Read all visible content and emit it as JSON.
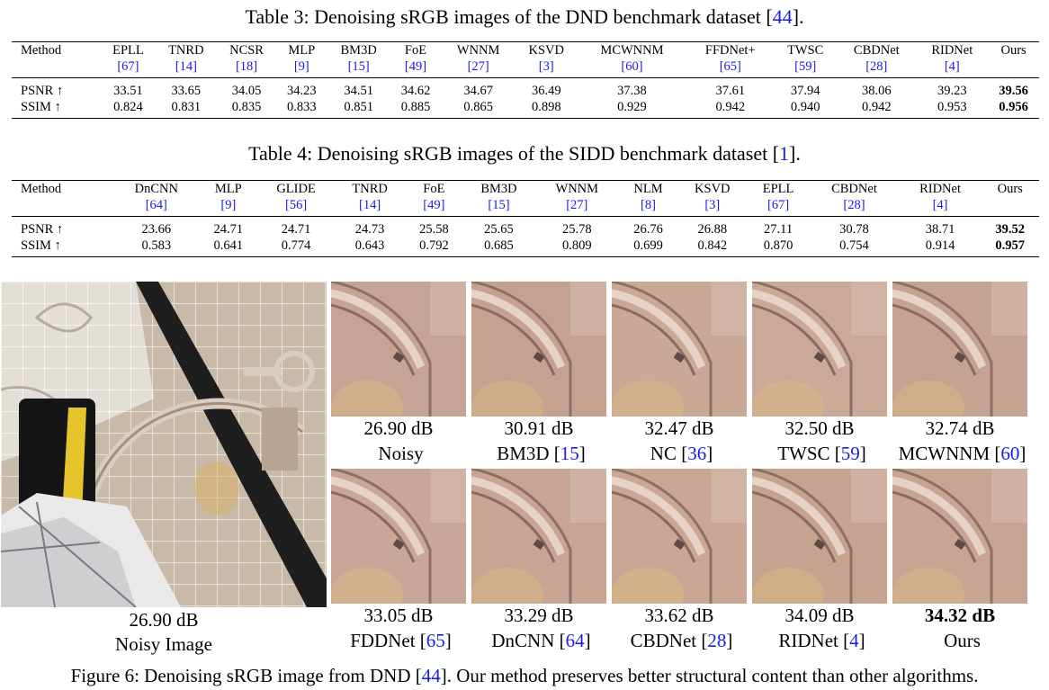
{
  "table3": {
    "caption_prefix": "Table 3: Denoising sRGB images of the DND benchmark dataset [",
    "caption_ref": "44",
    "caption_suffix": "].",
    "header_label": "Method",
    "methods": [
      {
        "name": "EPLL",
        "ref": "[67]"
      },
      {
        "name": "TNRD",
        "ref": "[14]"
      },
      {
        "name": "NCSR",
        "ref": "[18]"
      },
      {
        "name": "MLP",
        "ref": "[9]"
      },
      {
        "name": "BM3D",
        "ref": "[15]"
      },
      {
        "name": "FoE",
        "ref": "[49]"
      },
      {
        "name": "WNNM",
        "ref": "[27]"
      },
      {
        "name": "KSVD",
        "ref": "[3]"
      },
      {
        "name": "MCWNNM",
        "ref": "[60]"
      },
      {
        "name": "FFDNet+",
        "ref": "[65]"
      },
      {
        "name": "TWSC",
        "ref": "[59]"
      },
      {
        "name": "CBDNet",
        "ref": "[28]"
      },
      {
        "name": "RIDNet",
        "ref": "[4]"
      },
      {
        "name": "Ours",
        "ref": ""
      }
    ],
    "rows": [
      {
        "label": "PSNR ↑",
        "values": [
          "33.51",
          "33.65",
          "34.05",
          "34.23",
          "34.51",
          "34.62",
          "34.67",
          "36.49",
          "37.38",
          "37.61",
          "37.94",
          "38.06",
          "39.23",
          "39.56"
        ]
      },
      {
        "label": "SSIM ↑",
        "values": [
          "0.824",
          "0.831",
          "0.835",
          "0.833",
          "0.851",
          "0.885",
          "0.865",
          "0.898",
          "0.929",
          "0.942",
          "0.940",
          "0.942",
          "0.953",
          "0.956"
        ]
      }
    ]
  },
  "table4": {
    "caption_prefix": "Table 4: Denoising sRGB images of the SIDD benchmark dataset [",
    "caption_ref": "1",
    "caption_suffix": "].",
    "header_label": "Method",
    "methods": [
      {
        "name": "DnCNN",
        "ref": "[64]"
      },
      {
        "name": "MLP",
        "ref": "[9]"
      },
      {
        "name": "GLIDE",
        "ref": "[56]"
      },
      {
        "name": "TNRD",
        "ref": "[14]"
      },
      {
        "name": "FoE",
        "ref": "[49]"
      },
      {
        "name": "BM3D",
        "ref": "[15]"
      },
      {
        "name": "WNNM",
        "ref": "[27]"
      },
      {
        "name": "NLM",
        "ref": "[8]"
      },
      {
        "name": "KSVD",
        "ref": "[3]"
      },
      {
        "name": "EPLL",
        "ref": "[67]"
      },
      {
        "name": "CBDNet",
        "ref": "[28]"
      },
      {
        "name": "RIDNet",
        "ref": "[4]"
      },
      {
        "name": "Ours",
        "ref": ""
      }
    ],
    "rows": [
      {
        "label": "PSNR ↑",
        "values": [
          "23.66",
          "24.71",
          "24.71",
          "24.73",
          "25.58",
          "25.65",
          "25.78",
          "26.76",
          "26.88",
          "27.11",
          "30.78",
          "38.71",
          "39.52"
        ]
      },
      {
        "label": "SSIM ↑",
        "values": [
          "0.583",
          "0.641",
          "0.774",
          "0.643",
          "0.792",
          "0.685",
          "0.809",
          "0.699",
          "0.842",
          "0.870",
          "0.754",
          "0.914",
          "0.957"
        ]
      }
    ]
  },
  "figure": {
    "main": {
      "db": "26.90 dB",
      "label": "Noisy Image"
    },
    "crops": [
      {
        "db": "26.90 dB",
        "name": "Noisy",
        "ref": ""
      },
      {
        "db": "30.91 dB",
        "name": "BM3D [",
        "ref": "15"
      },
      {
        "db": "32.47 dB",
        "name": "NC [",
        "ref": "36"
      },
      {
        "db": "32.50 dB",
        "name": "TWSC [",
        "ref": "59"
      },
      {
        "db": "32.74 dB",
        "name": "MCWNNM [",
        "ref": "60"
      },
      {
        "db": "33.05 dB",
        "name": "FDDNet [",
        "ref": "65"
      },
      {
        "db": "33.29 dB",
        "name": "DnCNN [",
        "ref": "64"
      },
      {
        "db": "33.62 dB",
        "name": "CBDNet [",
        "ref": "28"
      },
      {
        "db": "34.09 dB",
        "name": "RIDNet [",
        "ref": "4"
      },
      {
        "db": "34.32 dB",
        "name": "Ours",
        "ref": ""
      }
    ],
    "caption_prefix": "Figure 6: Denoising sRGB image from DND [",
    "caption_ref": "44",
    "caption_suffix": "]. Our method preserves better structural content than other algorithms."
  }
}
